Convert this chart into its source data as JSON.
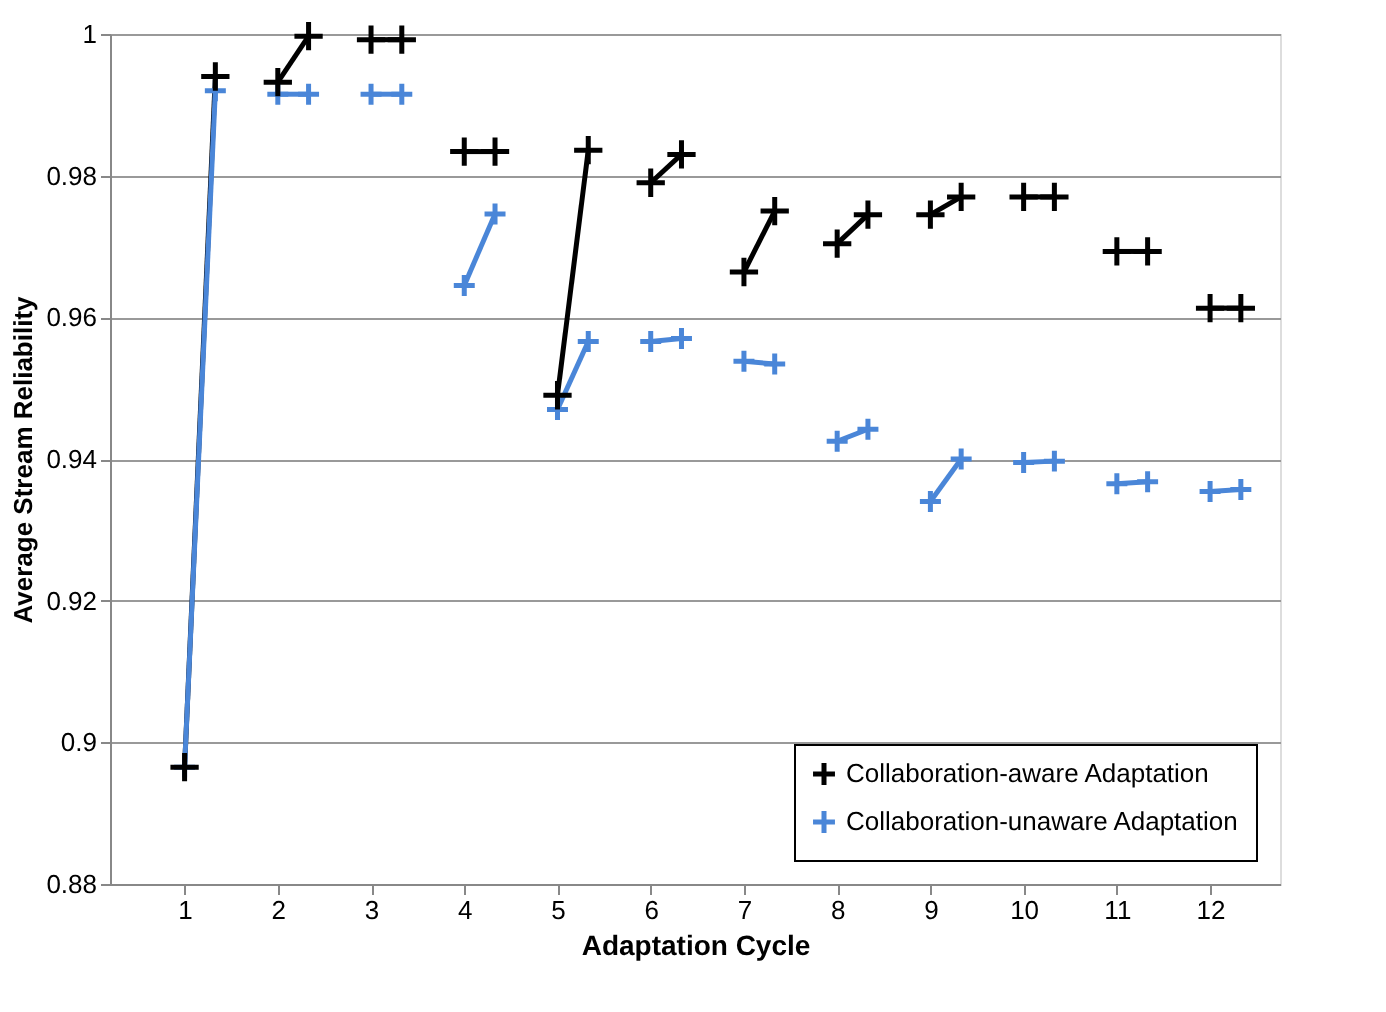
{
  "chart_data": {
    "type": "line",
    "xlabel": "Adaptation Cycle",
    "ylabel": "Average Stream Reliability",
    "x": [
      1,
      1.33,
      null,
      2,
      2.33,
      null,
      3,
      3.33,
      null,
      4,
      4.33,
      null,
      5,
      5.33,
      null,
      6,
      6.33,
      null,
      7,
      7.33,
      null,
      8,
      8.33,
      null,
      9,
      9.33,
      null,
      10,
      10.33,
      null,
      11,
      11.33,
      null,
      12,
      12.33
    ],
    "series": [
      {
        "name": "Collaboration-aware Adaptation",
        "color": "#000000",
        "marker": "cross",
        "values": [
          0.8965,
          0.994,
          null,
          0.9932,
          0.9997,
          null,
          0.9992,
          0.9992,
          null,
          0.9834,
          0.9834,
          null,
          0.949,
          0.9836,
          null,
          0.979,
          0.983,
          null,
          0.9664,
          0.975,
          null,
          0.9704,
          0.9745,
          null,
          0.9745,
          0.977,
          null,
          0.977,
          0.977,
          null,
          0.9693,
          0.9693,
          null,
          0.9613,
          0.9613
        ]
      },
      {
        "name": "Collaboration-unaware Adaptation",
        "color": "#4a86d8",
        "marker": "cross",
        "values": [
          0.8965,
          0.992,
          null,
          0.9915,
          0.9915,
          null,
          0.9915,
          0.9915,
          null,
          0.9645,
          0.9746,
          null,
          0.947,
          0.9566,
          null,
          0.9566,
          0.957,
          null,
          0.9538,
          0.9534,
          null,
          0.9425,
          0.9442,
          null,
          0.934,
          0.94,
          null,
          0.9395,
          0.9397,
          null,
          0.9365,
          0.9368,
          null,
          0.9354,
          0.9357
        ]
      }
    ],
    "xlim": [
      0.2,
      12.75
    ],
    "xticks": [
      1,
      2,
      3,
      4,
      5,
      6,
      7,
      8,
      9,
      10,
      11,
      12
    ],
    "ylim": [
      0.88,
      1
    ],
    "yticks": [
      0.88,
      0.9,
      0.92,
      0.94,
      0.96,
      0.98,
      1
    ],
    "grid": "y",
    "legend": "bottom right",
    "line_style": "solid"
  }
}
